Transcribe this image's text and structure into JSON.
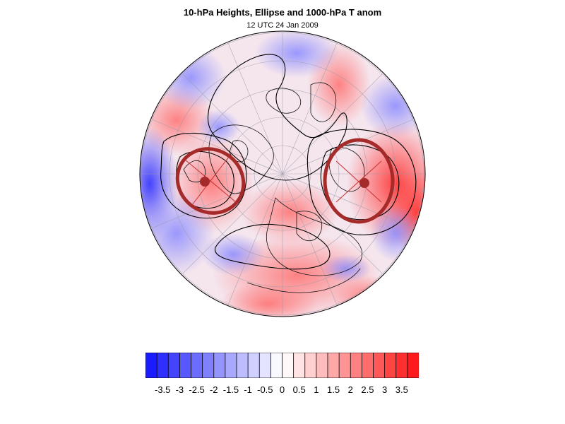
{
  "title": "10-hPa Heights, Ellipse and 1000-hPa T anom",
  "subtitle": "12 UTC 24 Jan 2009",
  "colorbar": {
    "colors": [
      "#1b1bff",
      "#2f2fff",
      "#4444ff",
      "#5858ff",
      "#6c6cff",
      "#8080ff",
      "#9494ff",
      "#a8a8ff",
      "#bcbcff",
      "#d0d0ff",
      "#e4e4ff",
      "#f8f8ff",
      "#fff8f8",
      "#ffe4e4",
      "#ffd0d0",
      "#ffbcbc",
      "#ffa8a8",
      "#ff9494",
      "#ff8080",
      "#ff6c6c",
      "#ff5858",
      "#ff4444",
      "#ff2f2f",
      "#ff1b1b"
    ],
    "labels": [
      "-3.5",
      "-3",
      "-2.5",
      "-2",
      "-1.5",
      "-1",
      "-0.5",
      "0",
      "0.5",
      "1",
      "1.5",
      "2",
      "2.5",
      "3",
      "3.5"
    ]
  },
  "map": {
    "ocean_base": "#f4eaf0",
    "ellipse_color": "#a52a2a",
    "contour_color": "#000000"
  }
}
